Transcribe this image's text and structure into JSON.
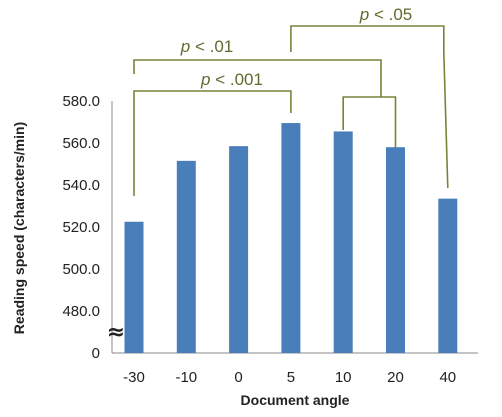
{
  "chart_data": {
    "type": "bar",
    "categories": [
      "-30",
      "-10",
      "0",
      "5",
      "10",
      "20",
      "40"
    ],
    "values": [
      522.5,
      551.5,
      558.5,
      569.5,
      565.5,
      558.0,
      533.5
    ],
    "xlabel": "Document angle",
    "ylabel": "Reading speed (characters/min)",
    "ylim": [
      480,
      580
    ],
    "yticks": [
      "580.0",
      "560.0",
      "540.0",
      "520.0",
      "500.0",
      "480.0"
    ],
    "y_zero_label": "0",
    "axis_break_symbol": "≈",
    "bar_color": "#4a7ebb",
    "bracket_color": "#76843a",
    "grid": false,
    "annotations": [
      {
        "label": "p < .05",
        "from": "5",
        "to": "40"
      },
      {
        "label": "p < .01",
        "from": "-30",
        "to": "10–20"
      },
      {
        "label": "p < .001",
        "from": "-30",
        "to": "5"
      }
    ]
  }
}
